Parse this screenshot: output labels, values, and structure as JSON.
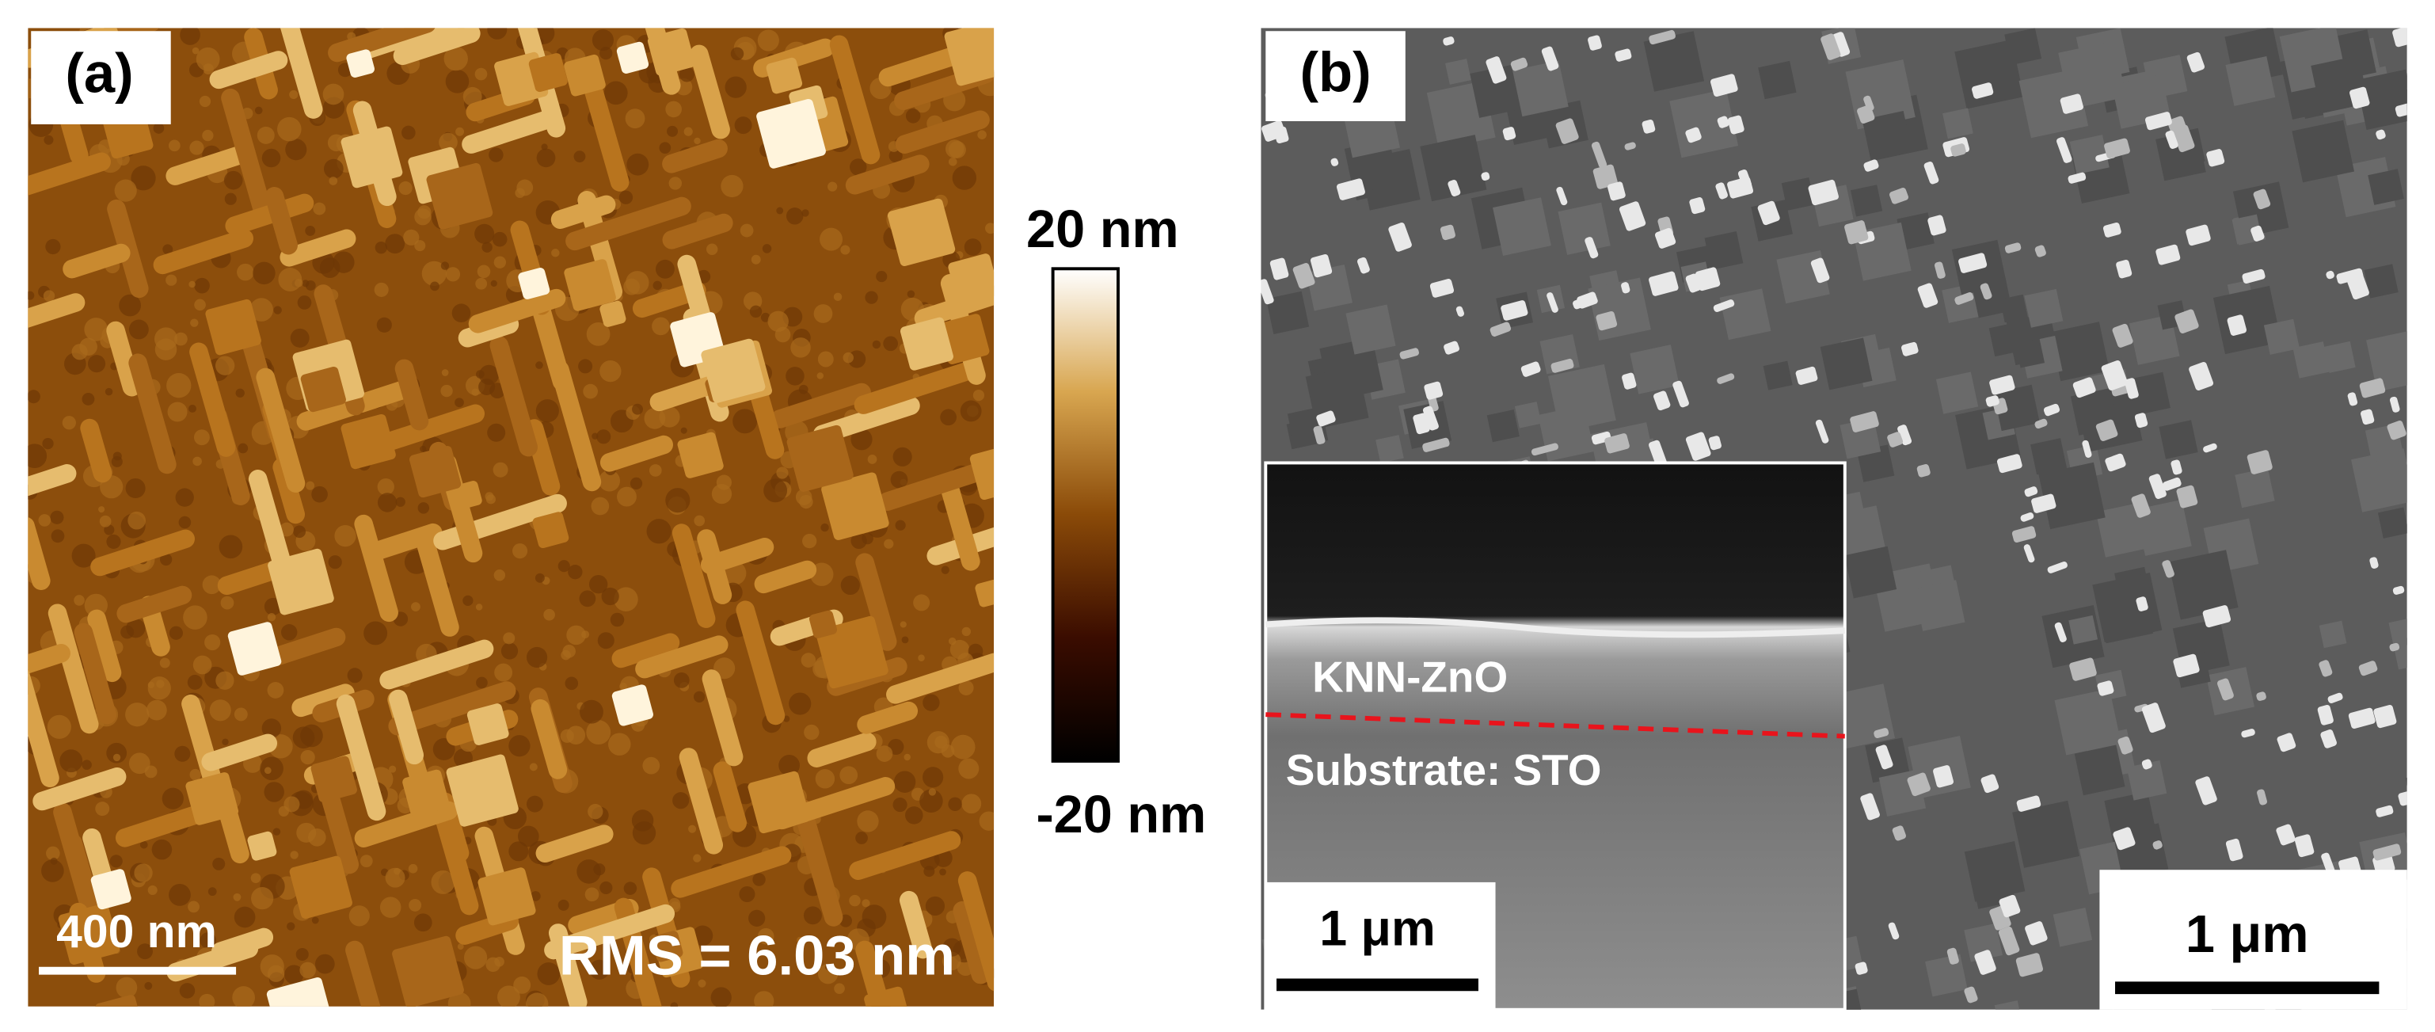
{
  "panels": {
    "a": {
      "label": "(a)",
      "scale_bar": "400 nm",
      "rms": "RMS = 6.03 nm",
      "colorbar": {
        "max_label": "20 nm",
        "min_label": "-20 nm"
      }
    },
    "b": {
      "label": "(b)",
      "scale_bar": "1 μm",
      "inset": {
        "layer_top": "KNN-ZnO",
        "layer_bottom": "Substrate: STO",
        "scale_bar": "1 μm"
      }
    }
  }
}
